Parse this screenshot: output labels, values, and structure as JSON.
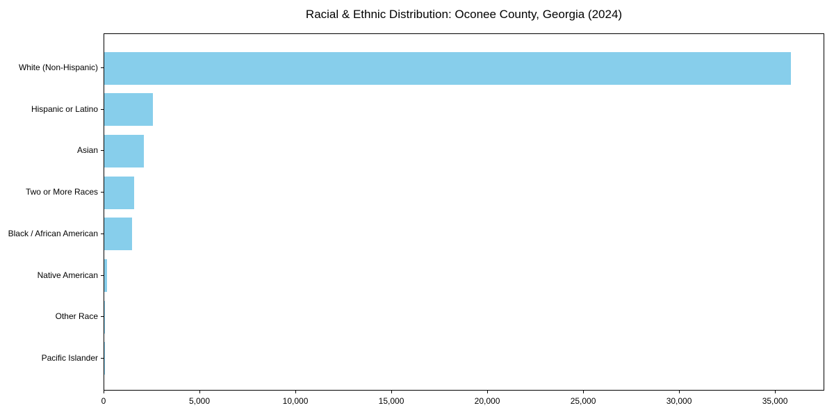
{
  "title": "Racial & Ethnic Distribution: Oconee County, Georgia (2024)",
  "chart_data": {
    "type": "bar",
    "orientation": "horizontal",
    "title": "Racial & Ethnic Distribution: Oconee County, Georgia (2024)",
    "categories": [
      "White (Non-Hispanic)",
      "Hispanic or Latino",
      "Asian",
      "Two or More Races",
      "Black / African American",
      "Native American",
      "Other Race",
      "Pacific Islander"
    ],
    "values": [
      35800,
      2550,
      2050,
      1560,
      1450,
      130,
      50,
      15
    ],
    "xlabel": "",
    "ylabel": "",
    "xlim": [
      0,
      37570
    ],
    "xticks": [
      0,
      5000,
      10000,
      15000,
      20000,
      25000,
      30000,
      35000
    ],
    "xtick_labels": [
      "0",
      "5,000",
      "10,000",
      "15,000",
      "20,000",
      "25,000",
      "30,000",
      "35,000"
    ],
    "bar_color": "#87ceeb",
    "text_color": "#000000",
    "spine_color": "#000000",
    "grid": false,
    "legend": null,
    "sorted": "descending"
  }
}
